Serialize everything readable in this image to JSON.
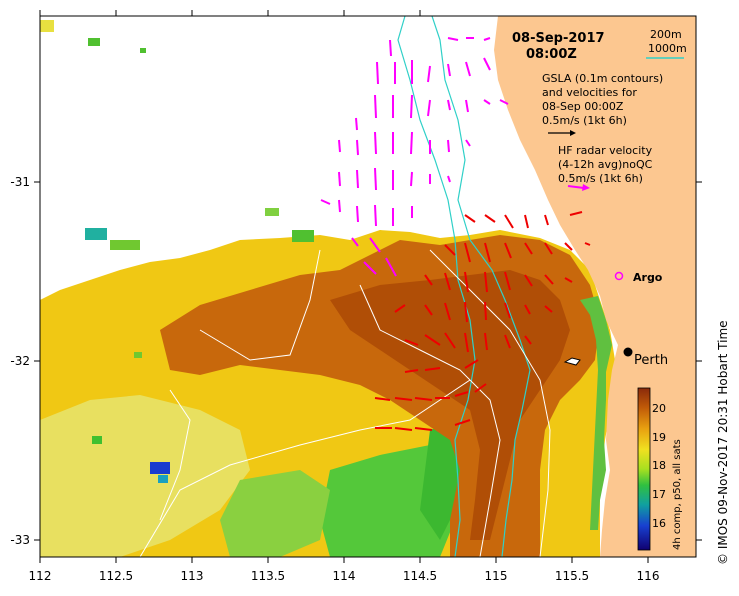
{
  "title": {
    "date": "08-Sep-2017",
    "time": "08:00Z"
  },
  "legend": {
    "depth_200": "200m",
    "depth_1000": "1000m",
    "gsla_line1": "GSLA (0.1m contours)",
    "gsla_line2": "and velocities for",
    "gsla_line3": "08-Sep 00:00Z",
    "gsla_scale": "0.5m/s (1kt 6h)",
    "hf_line1": "HF radar velocity",
    "hf_line2": "(4-12h avg)noQC",
    "hf_scale": "0.5m/s (1kt 6h)"
  },
  "labels": {
    "argo": "Argo",
    "perth": "Perth",
    "credit": "©  IMOS 09-Nov-2017 20:31 Hobart Time"
  },
  "axes": {
    "x_ticks": [
      "112",
      "112.5",
      "113",
      "113.5",
      "114",
      "114.5",
      "115",
      "115.5",
      "116"
    ],
    "y_ticks": [
      "-31",
      "-32",
      "-33"
    ]
  },
  "colorbar": {
    "title": "4h comp, p50, all sats",
    "ticks": [
      "20",
      "19",
      "18",
      "17",
      "16"
    ]
  },
  "colors": {
    "land": "#fcc790",
    "sst_warm": "#c05a08",
    "sst_mid": "#f0c010",
    "sst_cool": "#3cc030",
    "hf_arrow": "#ff00ff",
    "gsla_arrow": "#ee0000",
    "isobath": "#30d0c8"
  }
}
